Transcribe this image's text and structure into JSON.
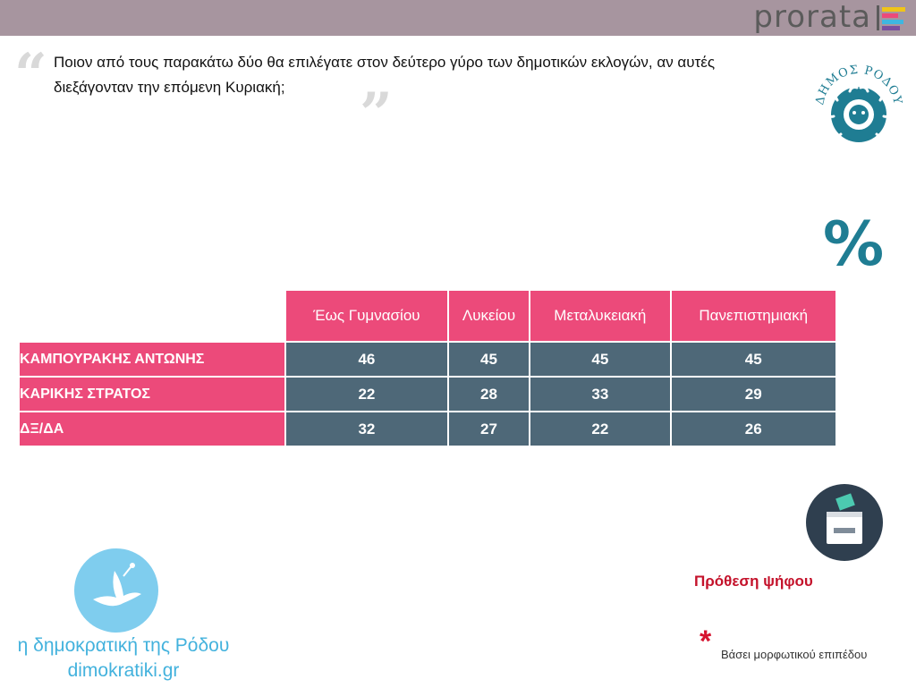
{
  "brand": {
    "name": "prorata"
  },
  "question": {
    "text": "Ποιον από τους παρακάτω δύο θα επιλέγατε στον δεύτερο γύρο των δημοτικών εκλογών, αν αυτές διεξάγονταν την επόμενη Κυριακή;",
    "open_quote": "“",
    "close_quote": "”"
  },
  "logos": {
    "municipality_text": "ΔΗΜΟΣ ΡΟΔΟΥ"
  },
  "percent_symbol": "%",
  "chart_data": {
    "type": "table",
    "categories": [
      "Έως Γυμνασίου",
      "Λυκείου",
      "Μεταλυκειακή",
      "Πανεπιστημιακή"
    ],
    "series": [
      {
        "name": "ΚΑΜΠΟΥΡΑΚΗΣ ΑΝΤΩΝΗΣ",
        "values": [
          46,
          45,
          45,
          45
        ]
      },
      {
        "name": "ΚΑΡΙΚΗΣ ΣΤΡΑΤΟΣ",
        "values": [
          22,
          28,
          33,
          29
        ]
      },
      {
        "name": "ΔΞ/ΔΑ",
        "values": [
          32,
          27,
          22,
          26
        ]
      }
    ]
  },
  "labels": {
    "intent": "Πρόθεση ψήφου",
    "asterisk": "*",
    "footnote": "Βάσει μορφωτικού επιπέδου"
  },
  "source": {
    "name": "η δημοκρατική της Ρόδου",
    "url": "dimokratiki.gr"
  },
  "colors": {
    "topbar": "#a7959f",
    "header_pink": "#ec4a7a",
    "cell_slate": "#4e6878",
    "teal": "#1f7d93",
    "intent_red": "#c4122b",
    "source_blue": "#43b2dd"
  }
}
